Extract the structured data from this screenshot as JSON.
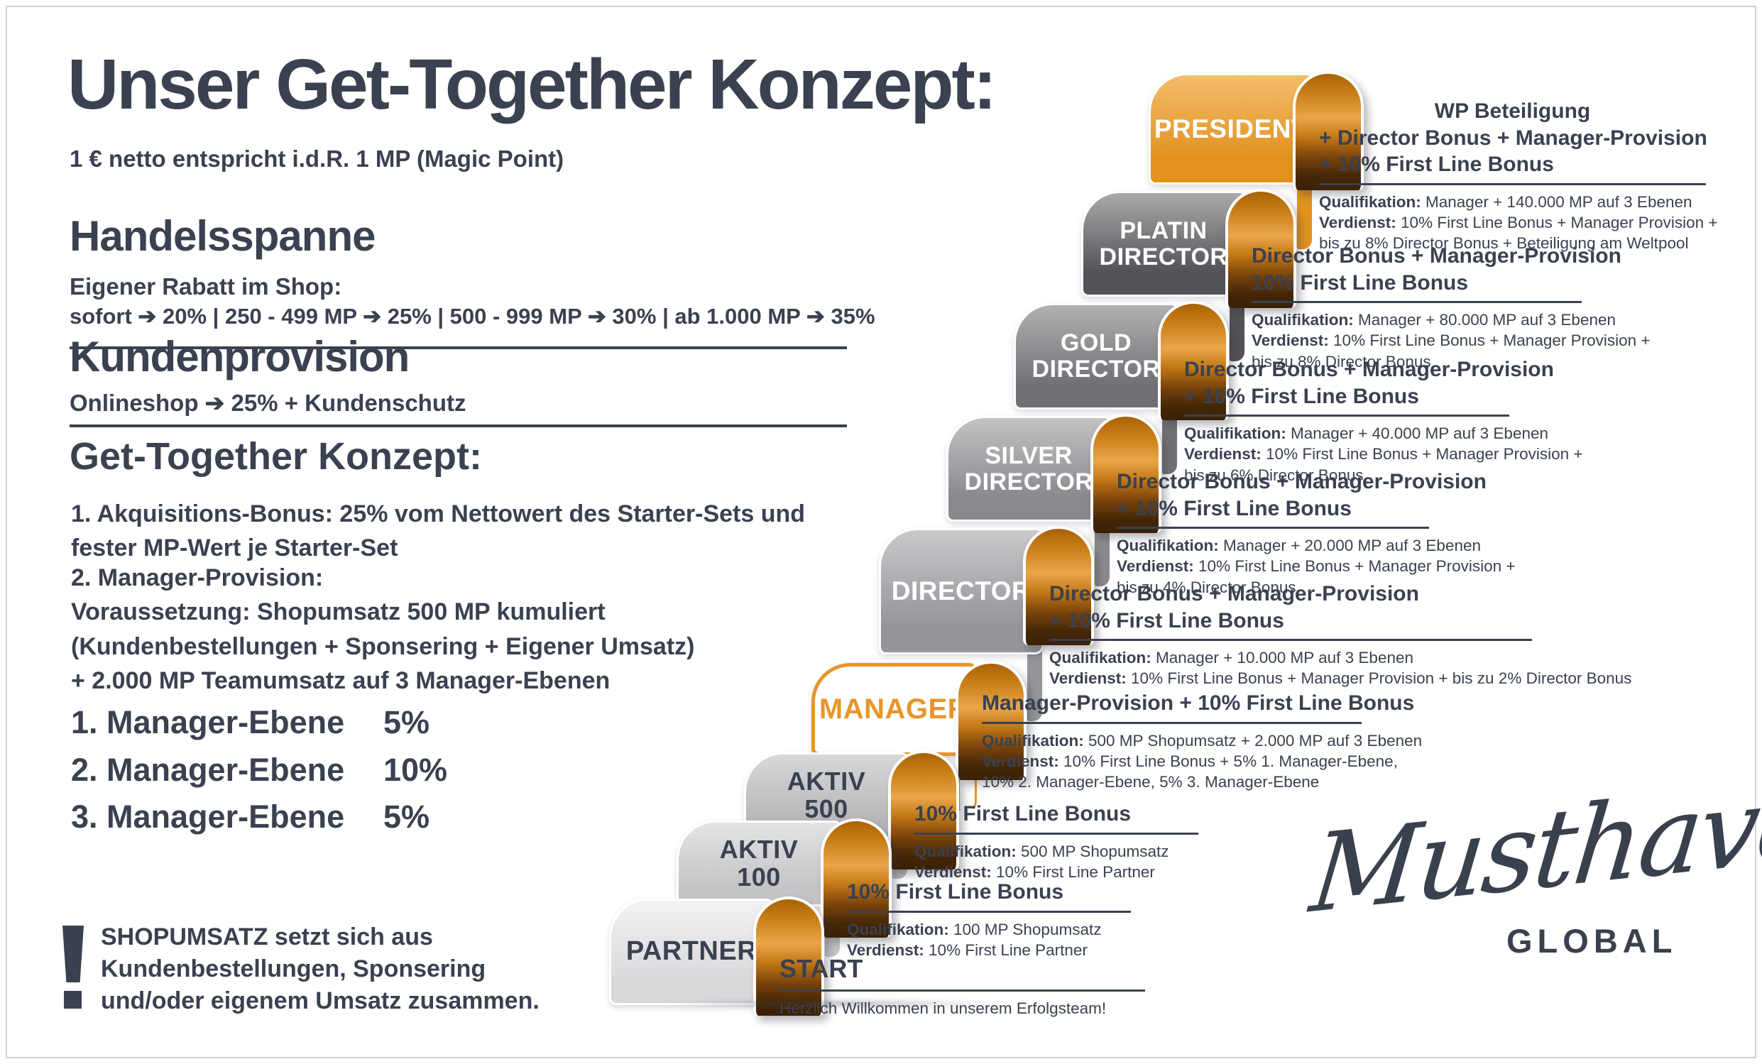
{
  "page": {
    "title": "Unser Get-Together Konzept:",
    "subtitle": "1 € netto entspricht i.d.R. 1 MP (Magic Point)"
  },
  "sections": {
    "handelsspanne": {
      "heading": "Handelsspanne",
      "line1": "Eigener Rabatt im Shop:",
      "line2": "sofort ➔ 20% | 250 - 499 MP ➔ 25% | 500 - 999 MP ➔ 30% | ab 1.000 MP ➔ 35%"
    },
    "kundenprovision": {
      "heading": "Kundenprovision",
      "line1": "Onlineshop ➔ 25% + Kundenschutz"
    },
    "konzept": {
      "heading": "Get-Together Konzept:",
      "para1": [
        "1. Akquisitions-Bonus: 25% vom Nettowert des Starter-Sets und",
        "fester MP-Wert je Starter-Set"
      ],
      "para2": [
        "2. Manager-Provision:",
        "Voraussetzung: Shopumsatz 500 MP kumuliert",
        "(Kundenbestellungen + Sponsering + Eigener Umsatz)",
        "+ 2.000 MP Teamumsatz auf 3 Manager-Ebenen"
      ]
    },
    "ebenen": [
      {
        "label": "1. Manager-Ebene",
        "value": "5%"
      },
      {
        "label": "2. Manager-Ebene",
        "value": "10%"
      },
      {
        "label": "3. Manager-Ebene",
        "value": "5%"
      }
    ],
    "note": [
      "SHOPUMSATZ setzt sich aus",
      "Kundenbestellungen, Sponsering",
      "und/oder eigenem Umsatz zusammen."
    ]
  },
  "colors": {
    "dark": "#3a4150",
    "accent_orange": "#e8952b",
    "arch_gradient": "linear-gradient(180deg,#a96208 0%,#c87d15 16%,#eaa64b 38%,#c47916 54%,#7a430b 72%,#452706 88%,#3a2105 100%)"
  },
  "steps": [
    {
      "id": "partner",
      "label_lines": [
        "PARTNER"
      ],
      "band": {
        "top": "#f2f2f4",
        "bottom": "#d9d9dc",
        "text": "#3a4150"
      },
      "desc": {
        "title_lines": [
          "START"
        ],
        "lines": [
          {
            "label": "",
            "text": "Herzlich Willkommen in unserem Erfolgsteam!"
          }
        ]
      }
    },
    {
      "id": "aktiv-100",
      "label_lines": [
        "AKTIV",
        "100"
      ],
      "band": {
        "top": "#e3e3e5",
        "bottom": "#c5c5c8",
        "text": "#3a4150"
      },
      "desc": {
        "title_lines": [
          "10% First Line Bonus"
        ],
        "lines": [
          {
            "label": "Qualifikation:",
            "text": " 100 MP Shopumsatz"
          },
          {
            "label": "Verdienst:",
            "text": " 10% First Line Partner"
          }
        ]
      }
    },
    {
      "id": "aktiv-500",
      "label_lines": [
        "AKTIV",
        "500"
      ],
      "band": {
        "top": "#d8d8da",
        "bottom": "#b8b8bb",
        "text": "#3a4150"
      },
      "desc": {
        "title_lines": [
          "10% First Line Bonus"
        ],
        "lines": [
          {
            "label": "Qualifikation:",
            "text": " 500 MP Shopumsatz"
          },
          {
            "label": "Verdienst:",
            "text": " 10% First Line Partner"
          }
        ]
      }
    },
    {
      "id": "manager",
      "label_lines": [
        "MANAGER"
      ],
      "band": {
        "top": "#ffffff",
        "bottom": "#ffffff",
        "text": "#e8952b",
        "border": "#e8952b"
      },
      "desc": {
        "title_lines": [
          "Manager-Provision + 10% First Line Bonus"
        ],
        "lines": [
          {
            "label": "Qualifikation:",
            "text": " 500 MP Shopumsatz + 2.000 MP auf 3 Ebenen"
          },
          {
            "label": "Verdienst:",
            "text": " 10% First Line Bonus + 5% 1. Manager-Ebene,"
          },
          {
            "label": "",
            "text": "10% 2. Manager-Ebene, 5% 3. Manager-Ebene"
          }
        ]
      }
    },
    {
      "id": "director",
      "label_lines": [
        "DIRECTOR"
      ],
      "band": {
        "top": "#c9c9cb",
        "bottom": "#95959a",
        "text": "#ffffff"
      },
      "desc": {
        "title_lines": [
          "Director Bonus + Manager-Provision",
          "+ 10% First Line Bonus"
        ],
        "lines": [
          {
            "label": "Qualifikation:",
            "text": " Manager + 10.000 MP auf 3 Ebenen"
          },
          {
            "label": "Verdienst:",
            "text": " 10% First Line Bonus + Manager Provision + bis zu 2% Director Bonus"
          }
        ]
      }
    },
    {
      "id": "silver-director",
      "label_lines": [
        "SILVER",
        "DIRECTOR"
      ],
      "band": {
        "top": "#c3c3c5",
        "bottom": "#8a8a8e",
        "text": "#ffffff"
      },
      "desc": {
        "title_lines": [
          "Director Bonus + Manager-Provision",
          "+ 10% First Line Bonus"
        ],
        "lines": [
          {
            "label": "Qualifikation:",
            "text": " Manager + 20.000 MP auf 3 Ebenen"
          },
          {
            "label": "Verdienst:",
            "text": " 10% First Line Bonus + Manager Provision +"
          },
          {
            "label": "",
            "text": "bis zu 4% Director Bonus"
          }
        ]
      }
    },
    {
      "id": "gold-director",
      "label_lines": [
        "GOLD",
        "DIRECTOR"
      ],
      "band": {
        "top": "#b1b1b3",
        "bottom": "#717175",
        "text": "#ffffff"
      },
      "desc": {
        "title_lines": [
          "Director Bonus + Manager-Provision",
          "+ 10% First Line Bonus"
        ],
        "lines": [
          {
            "label": "Qualifikation:",
            "text": " Manager + 40.000 MP auf 3 Ebenen"
          },
          {
            "label": "Verdienst:",
            "text": " 10% First Line Bonus + Manager Provision +"
          },
          {
            "label": "",
            "text": "bis zu 6% Director Bonus"
          }
        ]
      }
    },
    {
      "id": "platin-director",
      "label_lines": [
        "PLATIN",
        "DIRECTOR"
      ],
      "band": {
        "top": "#aaaaac",
        "bottom": "#535357",
        "text": "#ffffff"
      },
      "desc": {
        "title_lines": [
          "Director Bonus + Manager-Provision",
          "10% First Line Bonus"
        ],
        "lines": [
          {
            "label": "Qualifikation:",
            "text": " Manager + 80.000 MP auf 3 Ebenen"
          },
          {
            "label": "Verdienst:",
            "text": " 10% First Line Bonus + Manager Provision +"
          },
          {
            "label": "",
            "text": "bis zu 8% Director Bonus"
          }
        ]
      }
    },
    {
      "id": "president",
      "label_lines": [
        "PRESIDENT"
      ],
      "band": {
        "top": "#f4bd6b",
        "bottom": "#e2921f",
        "text": "#ffffff"
      },
      "desc": {
        "title_lines": [
          "WP Beteiligung",
          "+ Director Bonus + Manager-Provision",
          "+ 10% First Line Bonus"
        ],
        "lines": [
          {
            "label": "Qualifikation:",
            "text": " Manager + 140.000 MP auf 3 Ebenen"
          },
          {
            "label": "Verdienst:",
            "text": " 10% First Line Bonus + Manager Provision +"
          },
          {
            "label": "",
            "text": "bis zu 8% Director Bonus + Beteiligung am Weltpool"
          }
        ]
      }
    }
  ],
  "logo": {
    "script": "Musthave",
    "global": "GLOBAL"
  }
}
